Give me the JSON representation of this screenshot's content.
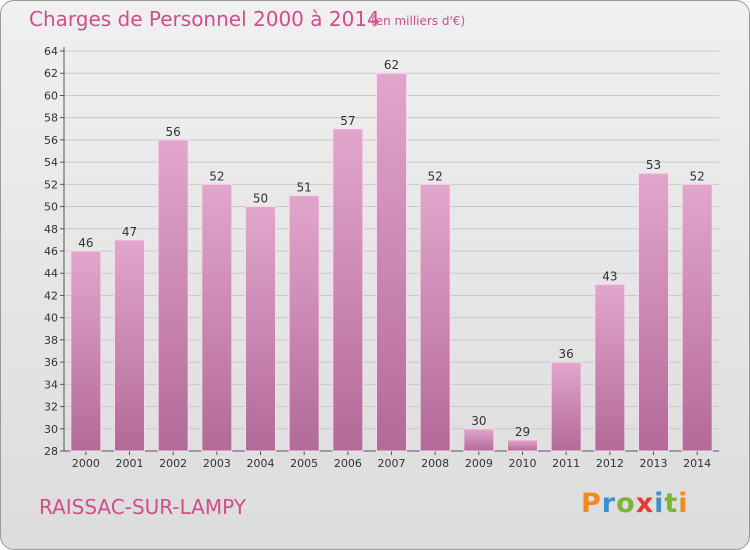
{
  "header": {
    "title": "Charges de Personnel 2000 à 2014",
    "subtitle": "(en milliers d'€)"
  },
  "footer": {
    "commune": "RAISSAC-SUR-LAMPY",
    "logo": "Proxiti"
  },
  "colors": {
    "accent": "#d04e8a",
    "bar_top": "#e2a6cc",
    "bar_bottom": "#b26a98"
  },
  "chart_data": {
    "type": "bar",
    "title": "Charges de Personnel 2000 à 2014",
    "subtitle": "(en milliers d'€)",
    "categories": [
      "2000",
      "2001",
      "2002",
      "2003",
      "2004",
      "2005",
      "2006",
      "2007",
      "2008",
      "2009",
      "2010",
      "2011",
      "2012",
      "2013",
      "2014"
    ],
    "values": [
      46,
      47,
      56,
      52,
      50,
      51,
      57,
      62,
      52,
      30,
      29,
      36,
      43,
      53,
      52
    ],
    "ylim": [
      28,
      64
    ],
    "yticks": [
      28,
      30,
      32,
      34,
      36,
      38,
      40,
      42,
      44,
      46,
      48,
      50,
      52,
      54,
      56,
      58,
      60,
      62,
      64
    ],
    "grid": true,
    "data_labels": true
  }
}
